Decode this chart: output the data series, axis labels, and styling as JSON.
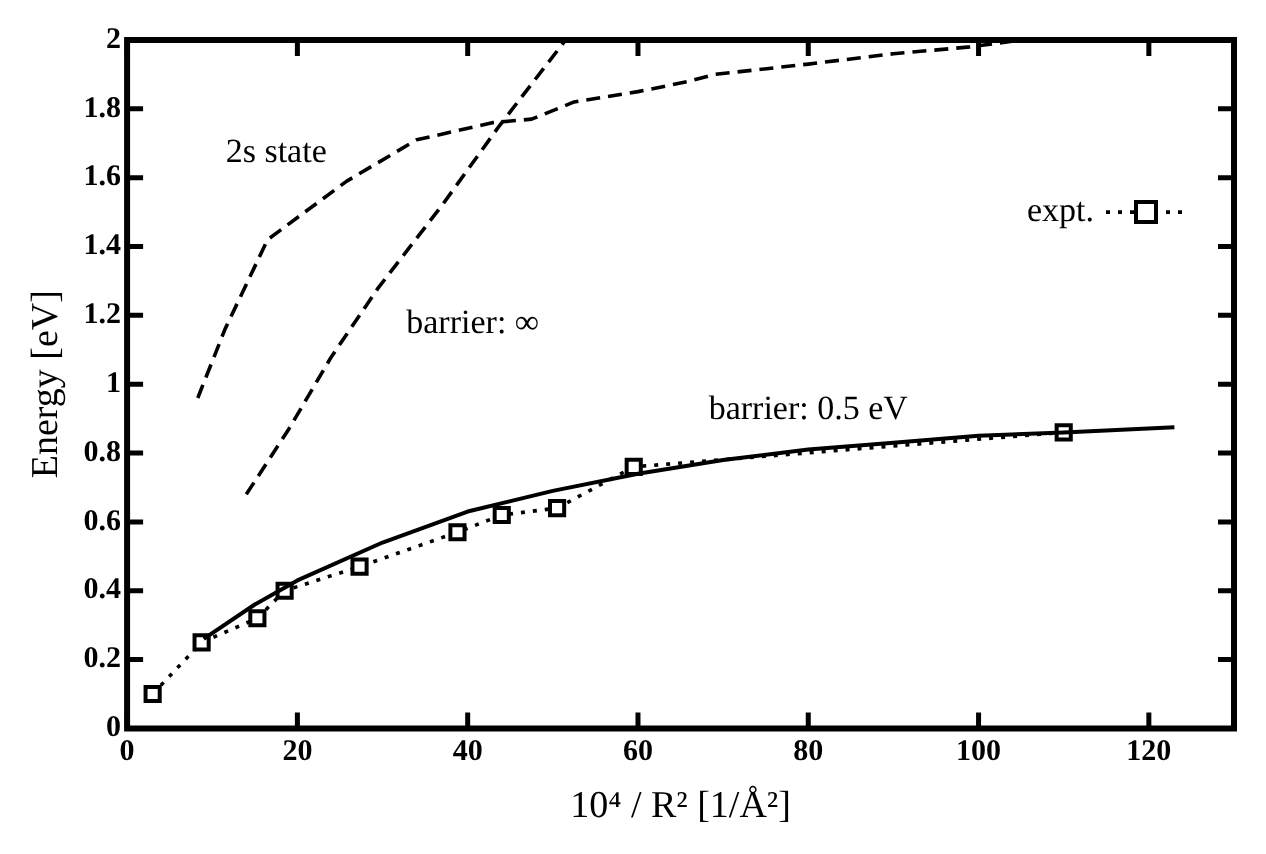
{
  "chart_data": {
    "type": "line",
    "xlabel": "10⁴ / R² [1/Å²]",
    "ylabel": "Energy [eV]",
    "xlim": [
      0,
      130
    ],
    "ylim": [
      0,
      2
    ],
    "xticks": [
      0,
      20,
      40,
      60,
      80,
      100,
      120
    ],
    "yticks": [
      0,
      0.2,
      0.4,
      0.6,
      0.8,
      1,
      1.2,
      1.4,
      1.6,
      1.8,
      2
    ],
    "grid": false,
    "legend": "top right",
    "series": [
      {
        "name": "2s state",
        "color": "#000000",
        "line_style": "dashed",
        "marker": "none",
        "x": [
          8.3,
          11.5,
          16.5,
          25.8,
          34,
          43,
          47.5,
          52.5,
          60,
          66,
          69,
          80,
          90,
          99,
          105
        ],
        "values": [
          0.96,
          1.16,
          1.42,
          1.59,
          1.71,
          1.76,
          1.77,
          1.82,
          1.85,
          1.88,
          1.9,
          1.93,
          1.96,
          1.98,
          2.0
        ]
      },
      {
        "name": "barrier: ∞",
        "color": "#000000",
        "line_style": "dashed",
        "marker": "none",
        "x": [
          14,
          19,
          24,
          29.5,
          37,
          43.7,
          51.5
        ],
        "values": [
          0.68,
          0.87,
          1.08,
          1.28,
          1.52,
          1.75,
          2.0
        ]
      },
      {
        "name": "barrier: 0.5 eV",
        "color": "#000000",
        "line_style": "solid",
        "marker": "none",
        "x": [
          9,
          15,
          20,
          30,
          40,
          50,
          60,
          70,
          80,
          90,
          100,
          110,
          123
        ],
        "values": [
          0.26,
          0.36,
          0.43,
          0.54,
          0.63,
          0.69,
          0.74,
          0.78,
          0.81,
          0.83,
          0.85,
          0.86,
          0.875
        ]
      },
      {
        "name": "expt.",
        "color": "#000000",
        "line_style": "dotted",
        "marker": "square",
        "x": [
          3,
          8.75,
          15.3,
          18.5,
          27.3,
          38.8,
          44,
          50.5,
          59.5,
          110
        ],
        "values": [
          0.1,
          0.25,
          0.32,
          0.4,
          0.47,
          0.57,
          0.62,
          0.64,
          0.76,
          0.86
        ]
      }
    ]
  }
}
